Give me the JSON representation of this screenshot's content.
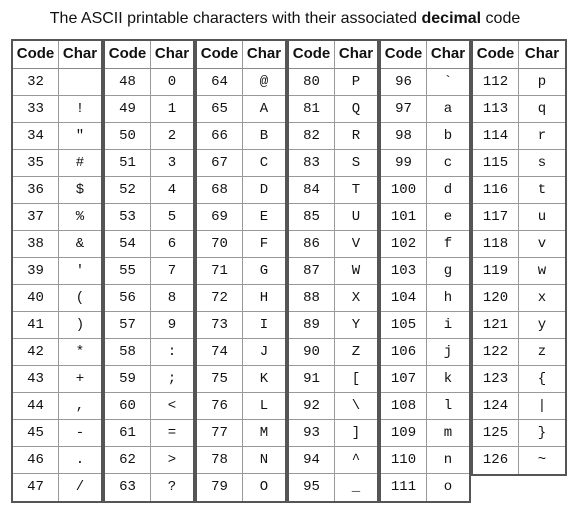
{
  "title": {
    "prefix": "The ASCII printable characters with their associated ",
    "bold": "decimal",
    "suffix": " code"
  },
  "headers": {
    "code": "Code",
    "char": "Char"
  },
  "columns": [
    {
      "rows": [
        [
          "32",
          ""
        ],
        [
          "33",
          "!"
        ],
        [
          "34",
          "\""
        ],
        [
          "35",
          "#"
        ],
        [
          "36",
          "$"
        ],
        [
          "37",
          "%"
        ],
        [
          "38",
          "&"
        ],
        [
          "39",
          "'"
        ],
        [
          "40",
          "("
        ],
        [
          "41",
          ")"
        ],
        [
          "42",
          "*"
        ],
        [
          "43",
          "+"
        ],
        [
          "44",
          ","
        ],
        [
          "45",
          "-"
        ],
        [
          "46",
          "."
        ],
        [
          "47",
          "/"
        ]
      ]
    },
    {
      "rows": [
        [
          "48",
          "0"
        ],
        [
          "49",
          "1"
        ],
        [
          "50",
          "2"
        ],
        [
          "51",
          "3"
        ],
        [
          "52",
          "4"
        ],
        [
          "53",
          "5"
        ],
        [
          "54",
          "6"
        ],
        [
          "55",
          "7"
        ],
        [
          "56",
          "8"
        ],
        [
          "57",
          "9"
        ],
        [
          "58",
          ":"
        ],
        [
          "59",
          ";"
        ],
        [
          "60",
          "<"
        ],
        [
          "61",
          "="
        ],
        [
          "62",
          ">"
        ],
        [
          "63",
          "?"
        ]
      ]
    },
    {
      "rows": [
        [
          "64",
          "@"
        ],
        [
          "65",
          "A"
        ],
        [
          "66",
          "B"
        ],
        [
          "67",
          "C"
        ],
        [
          "68",
          "D"
        ],
        [
          "69",
          "E"
        ],
        [
          "70",
          "F"
        ],
        [
          "71",
          "G"
        ],
        [
          "72",
          "H"
        ],
        [
          "73",
          "I"
        ],
        [
          "74",
          "J"
        ],
        [
          "75",
          "K"
        ],
        [
          "76",
          "L"
        ],
        [
          "77",
          "M"
        ],
        [
          "78",
          "N"
        ],
        [
          "79",
          "O"
        ]
      ]
    },
    {
      "rows": [
        [
          "80",
          "P"
        ],
        [
          "81",
          "Q"
        ],
        [
          "82",
          "R"
        ],
        [
          "83",
          "S"
        ],
        [
          "84",
          "T"
        ],
        [
          "85",
          "U"
        ],
        [
          "86",
          "V"
        ],
        [
          "87",
          "W"
        ],
        [
          "88",
          "X"
        ],
        [
          "89",
          "Y"
        ],
        [
          "90",
          "Z"
        ],
        [
          "91",
          "["
        ],
        [
          "92",
          "\\"
        ],
        [
          "93",
          "]"
        ],
        [
          "94",
          "^"
        ],
        [
          "95",
          "_"
        ]
      ]
    },
    {
      "rows": [
        [
          "96",
          "`"
        ],
        [
          "97",
          "a"
        ],
        [
          "98",
          "b"
        ],
        [
          "99",
          "c"
        ],
        [
          "100",
          "d"
        ],
        [
          "101",
          "e"
        ],
        [
          "102",
          "f"
        ],
        [
          "103",
          "g"
        ],
        [
          "104",
          "h"
        ],
        [
          "105",
          "i"
        ],
        [
          "106",
          "j"
        ],
        [
          "107",
          "k"
        ],
        [
          "108",
          "l"
        ],
        [
          "109",
          "m"
        ],
        [
          "110",
          "n"
        ],
        [
          "111",
          "o"
        ]
      ]
    },
    {
      "rows": [
        [
          "112",
          "p"
        ],
        [
          "113",
          "q"
        ],
        [
          "114",
          "r"
        ],
        [
          "115",
          "s"
        ],
        [
          "116",
          "t"
        ],
        [
          "117",
          "u"
        ],
        [
          "118",
          "v"
        ],
        [
          "119",
          "w"
        ],
        [
          "120",
          "x"
        ],
        [
          "121",
          "y"
        ],
        [
          "122",
          "z"
        ],
        [
          "123",
          "{"
        ],
        [
          "124",
          "|"
        ],
        [
          "125",
          "}"
        ],
        [
          "126",
          "~"
        ]
      ]
    }
  ]
}
